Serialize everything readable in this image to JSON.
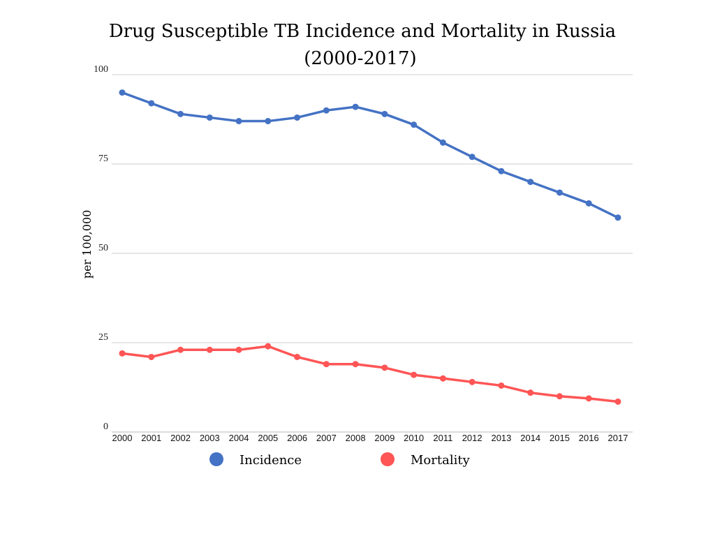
{
  "chart_data": {
    "type": "line",
    "title": "Drug Susceptible TB Incidence and Mortality in Russia",
    "subtitle": "(2000-2017)",
    "xlabel": "",
    "ylabel": "per 100,000",
    "ylim": [
      0,
      100
    ],
    "yticks": [
      "0",
      "25",
      "50",
      "75",
      "100"
    ],
    "grid": true,
    "legend_position": "bottom",
    "x": [
      "2000",
      "2001",
      "2002",
      "2003",
      "2004",
      "2005",
      "2006",
      "2007",
      "2008",
      "2009",
      "2010",
      "2011",
      "2012",
      "2013",
      "2014",
      "2015",
      "2016",
      "2017"
    ],
    "series": [
      {
        "name": "Incidence",
        "color": "#4472c4",
        "values": [
          95,
          92,
          89,
          88,
          87,
          87,
          88,
          90,
          91,
          89,
          86,
          81,
          77,
          73,
          70,
          67,
          64,
          60
        ]
      },
      {
        "name": "Mortality",
        "color": "#ff5555",
        "values": [
          22,
          21,
          23,
          23,
          23,
          24,
          21,
          19,
          19,
          18,
          16,
          15,
          14,
          13,
          11,
          10,
          9.4,
          8.5
        ]
      }
    ]
  }
}
